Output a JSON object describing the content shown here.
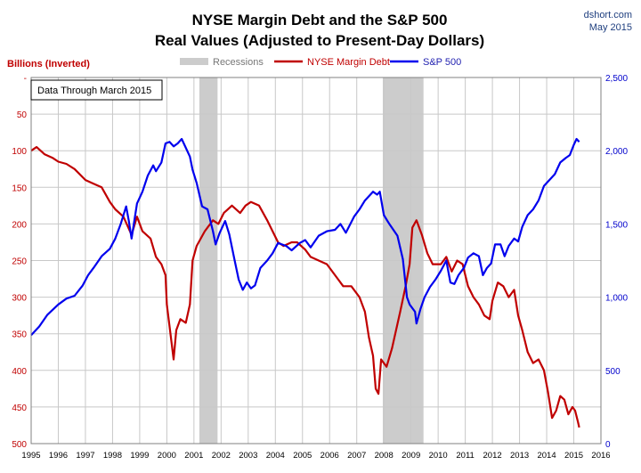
{
  "chart_data": {
    "type": "line",
    "title": "NYSE Margin Debt and the S&P 500",
    "subtitle": "Real Values (Adjusted to Present-Day Dollars)",
    "source": "dshort.com",
    "date_label": "May 2015",
    "left_axis_label": "Billions (Inverted)",
    "annotation": "Data Through March 2015",
    "x_ticks": [
      "1995",
      "1996",
      "1997",
      "1998",
      "1999",
      "2000",
      "2001",
      "2002",
      "2003",
      "2004",
      "2005",
      "2006",
      "2007",
      "2008",
      "2009",
      "2010",
      "2011",
      "2012",
      "2013",
      "2014",
      "2015",
      "2016"
    ],
    "xlim": [
      1995,
      2016
    ],
    "left_axis": {
      "ticks": [
        "-",
        "50",
        "100",
        "150",
        "200",
        "250",
        "300",
        "350",
        "400",
        "450",
        "500"
      ],
      "range": [
        0,
        500
      ],
      "inverted": true
    },
    "right_axis": {
      "ticks": [
        "0",
        "500",
        "1,000",
        "1,500",
        "2,000",
        "2,500"
      ],
      "range": [
        0,
        2500
      ]
    },
    "grid": true,
    "legend_position": "top-center",
    "recessions": {
      "name": "Recessions",
      "color": "#cccccc",
      "periods": [
        [
          2001.2,
          2001.87
        ],
        [
          2007.96,
          2009.46
        ]
      ]
    },
    "series": [
      {
        "name": "NYSE Margin Debt",
        "axis": "left",
        "color": "#c00000",
        "points": [
          [
            1995.0,
            100
          ],
          [
            1995.2,
            95
          ],
          [
            1995.5,
            105
          ],
          [
            1995.8,
            110
          ],
          [
            1996.0,
            115
          ],
          [
            1996.3,
            118
          ],
          [
            1996.6,
            125
          ],
          [
            1997.0,
            140
          ],
          [
            1997.3,
            145
          ],
          [
            1997.6,
            150
          ],
          [
            1997.9,
            170
          ],
          [
            1998.1,
            180
          ],
          [
            1998.4,
            190
          ],
          [
            1998.7,
            215
          ],
          [
            1998.9,
            190
          ],
          [
            1999.1,
            210
          ],
          [
            1999.4,
            220
          ],
          [
            1999.6,
            245
          ],
          [
            1999.8,
            255
          ],
          [
            1999.95,
            270
          ],
          [
            2000.0,
            310
          ],
          [
            2000.2,
            370
          ],
          [
            2000.25,
            385
          ],
          [
            2000.35,
            345
          ],
          [
            2000.5,
            330
          ],
          [
            2000.7,
            335
          ],
          [
            2000.85,
            310
          ],
          [
            2000.95,
            250
          ],
          [
            2001.1,
            230
          ],
          [
            2001.4,
            210
          ],
          [
            2001.7,
            195
          ],
          [
            2001.9,
            200
          ],
          [
            2002.1,
            185
          ],
          [
            2002.4,
            175
          ],
          [
            2002.7,
            185
          ],
          [
            2002.9,
            175
          ],
          [
            2003.1,
            170
          ],
          [
            2003.4,
            175
          ],
          [
            2003.7,
            195
          ],
          [
            2003.9,
            210
          ],
          [
            2004.1,
            225
          ],
          [
            2004.3,
            230
          ],
          [
            2004.6,
            225
          ],
          [
            2004.8,
            225
          ],
          [
            2005.1,
            235
          ],
          [
            2005.3,
            245
          ],
          [
            2005.6,
            250
          ],
          [
            2005.9,
            255
          ],
          [
            2006.2,
            270
          ],
          [
            2006.5,
            285
          ],
          [
            2006.8,
            285
          ],
          [
            2007.1,
            300
          ],
          [
            2007.3,
            320
          ],
          [
            2007.45,
            355
          ],
          [
            2007.6,
            380
          ],
          [
            2007.7,
            425
          ],
          [
            2007.8,
            432
          ],
          [
            2007.9,
            385
          ],
          [
            2008.1,
            395
          ],
          [
            2008.3,
            370
          ],
          [
            2008.6,
            320
          ],
          [
            2008.8,
            285
          ],
          [
            2008.95,
            255
          ],
          [
            2009.05,
            205
          ],
          [
            2009.2,
            195
          ],
          [
            2009.4,
            215
          ],
          [
            2009.6,
            240
          ],
          [
            2009.8,
            255
          ],
          [
            2010.1,
            255
          ],
          [
            2010.3,
            245
          ],
          [
            2010.5,
            265
          ],
          [
            2010.7,
            250
          ],
          [
            2010.9,
            255
          ],
          [
            2011.1,
            285
          ],
          [
            2011.3,
            300
          ],
          [
            2011.5,
            310
          ],
          [
            2011.7,
            325
          ],
          [
            2011.9,
            330
          ],
          [
            2012.0,
            305
          ],
          [
            2012.2,
            280
          ],
          [
            2012.4,
            285
          ],
          [
            2012.6,
            300
          ],
          [
            2012.8,
            290
          ],
          [
            2012.95,
            325
          ],
          [
            2013.1,
            345
          ],
          [
            2013.3,
            375
          ],
          [
            2013.5,
            390
          ],
          [
            2013.7,
            385
          ],
          [
            2013.9,
            400
          ],
          [
            2014.05,
            430
          ],
          [
            2014.2,
            465
          ],
          [
            2014.35,
            455
          ],
          [
            2014.5,
            435
          ],
          [
            2014.65,
            440
          ],
          [
            2014.8,
            460
          ],
          [
            2014.95,
            450
          ],
          [
            2015.05,
            455
          ],
          [
            2015.15,
            470
          ],
          [
            2015.2,
            478
          ]
        ]
      },
      {
        "name": "S&P 500",
        "axis": "right",
        "color": "#0000ee",
        "points": [
          [
            1995.0,
            740
          ],
          [
            1995.3,
            800
          ],
          [
            1995.6,
            880
          ],
          [
            1996.0,
            950
          ],
          [
            1996.3,
            990
          ],
          [
            1996.6,
            1010
          ],
          [
            1996.9,
            1080
          ],
          [
            1997.1,
            1150
          ],
          [
            1997.3,
            1200
          ],
          [
            1997.6,
            1280
          ],
          [
            1997.9,
            1330
          ],
          [
            1998.1,
            1400
          ],
          [
            1998.3,
            1500
          ],
          [
            1998.5,
            1620
          ],
          [
            1998.6,
            1520
          ],
          [
            1998.7,
            1400
          ],
          [
            1998.9,
            1640
          ],
          [
            1999.1,
            1720
          ],
          [
            1999.3,
            1830
          ],
          [
            1999.5,
            1900
          ],
          [
            1999.6,
            1860
          ],
          [
            1999.8,
            1920
          ],
          [
            1999.95,
            2050
          ],
          [
            2000.1,
            2060
          ],
          [
            2000.25,
            2030
          ],
          [
            2000.4,
            2050
          ],
          [
            2000.55,
            2080
          ],
          [
            2000.7,
            2020
          ],
          [
            2000.85,
            1960
          ],
          [
            2000.95,
            1870
          ],
          [
            2001.1,
            1780
          ],
          [
            2001.3,
            1620
          ],
          [
            2001.5,
            1600
          ],
          [
            2001.7,
            1450
          ],
          [
            2001.8,
            1360
          ],
          [
            2001.95,
            1440
          ],
          [
            2002.15,
            1520
          ],
          [
            2002.3,
            1430
          ],
          [
            2002.5,
            1250
          ],
          [
            2002.65,
            1120
          ],
          [
            2002.8,
            1050
          ],
          [
            2002.95,
            1100
          ],
          [
            2003.1,
            1060
          ],
          [
            2003.25,
            1080
          ],
          [
            2003.45,
            1200
          ],
          [
            2003.7,
            1250
          ],
          [
            2003.9,
            1300
          ],
          [
            2004.1,
            1370
          ],
          [
            2004.4,
            1350
          ],
          [
            2004.6,
            1320
          ],
          [
            2004.9,
            1370
          ],
          [
            2005.1,
            1390
          ],
          [
            2005.3,
            1340
          ],
          [
            2005.6,
            1420
          ],
          [
            2005.9,
            1450
          ],
          [
            2006.2,
            1460
          ],
          [
            2006.4,
            1500
          ],
          [
            2006.6,
            1440
          ],
          [
            2006.9,
            1550
          ],
          [
            2007.1,
            1600
          ],
          [
            2007.3,
            1660
          ],
          [
            2007.6,
            1720
          ],
          [
            2007.75,
            1700
          ],
          [
            2007.85,
            1720
          ],
          [
            2008.0,
            1560
          ],
          [
            2008.2,
            1500
          ],
          [
            2008.5,
            1420
          ],
          [
            2008.7,
            1260
          ],
          [
            2008.85,
            1000
          ],
          [
            2008.95,
            950
          ],
          [
            2009.15,
            900
          ],
          [
            2009.2,
            820
          ],
          [
            2009.35,
            920
          ],
          [
            2009.5,
            1000
          ],
          [
            2009.7,
            1070
          ],
          [
            2009.9,
            1120
          ],
          [
            2010.1,
            1180
          ],
          [
            2010.3,
            1250
          ],
          [
            2010.45,
            1100
          ],
          [
            2010.6,
            1090
          ],
          [
            2010.75,
            1150
          ],
          [
            2010.95,
            1200
          ],
          [
            2011.1,
            1270
          ],
          [
            2011.3,
            1300
          ],
          [
            2011.5,
            1280
          ],
          [
            2011.65,
            1150
          ],
          [
            2011.8,
            1200
          ],
          [
            2011.95,
            1230
          ],
          [
            2012.1,
            1360
          ],
          [
            2012.3,
            1360
          ],
          [
            2012.45,
            1280
          ],
          [
            2012.6,
            1350
          ],
          [
            2012.8,
            1400
          ],
          [
            2012.95,
            1380
          ],
          [
            2013.1,
            1480
          ],
          [
            2013.3,
            1560
          ],
          [
            2013.5,
            1600
          ],
          [
            2013.7,
            1660
          ],
          [
            2013.9,
            1760
          ],
          [
            2014.1,
            1800
          ],
          [
            2014.3,
            1840
          ],
          [
            2014.5,
            1920
          ],
          [
            2014.7,
            1950
          ],
          [
            2014.85,
            1970
          ],
          [
            2015.0,
            2040
          ],
          [
            2015.1,
            2080
          ],
          [
            2015.2,
            2060
          ]
        ]
      }
    ]
  }
}
